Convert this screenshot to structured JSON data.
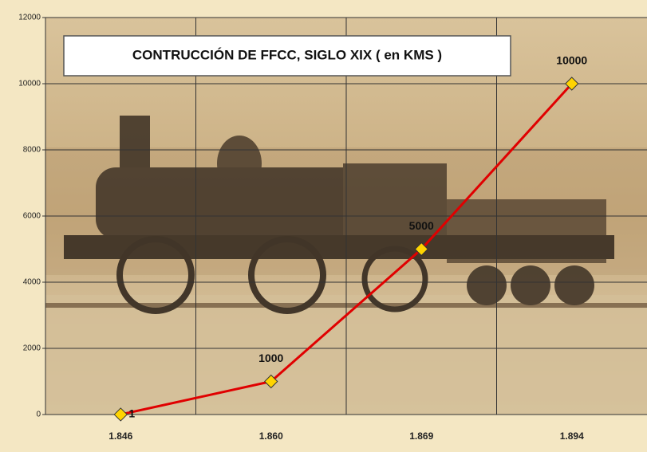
{
  "chart_data": {
    "type": "line",
    "title": "CONTRUCCIÓN DE FFCC, SIGLO XIX ( en KMS )",
    "categories": [
      "1.846",
      "1.860",
      "1.869",
      "1.894"
    ],
    "values": [
      1,
      1000,
      5000,
      10000
    ],
    "color": "#e00000",
    "marker_color": "#ffd400",
    "ylim": [
      0,
      12000
    ],
    "yticks": [
      0,
      2000,
      4000,
      6000,
      8000,
      10000,
      12000
    ],
    "grid": true
  }
}
